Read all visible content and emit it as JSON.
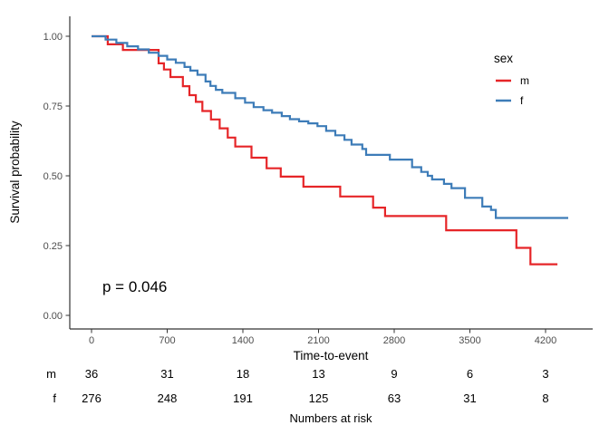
{
  "chart_data": {
    "type": "line",
    "subtype": "kaplan-meier-step-curves",
    "title": "",
    "xlabel": "Time-to-event",
    "ylabel": "Survival probability",
    "xlim": [
      0,
      4640
    ],
    "ylim": [
      0,
      1.0
    ],
    "grid": false,
    "xticks": [
      0,
      700,
      1400,
      2100,
      2800,
      3500,
      4200
    ],
    "yticks": [
      0.0,
      0.25,
      0.5,
      0.75,
      1.0
    ],
    "legend": {
      "title": "sex",
      "position": "top-right",
      "entries": [
        {
          "label": "m",
          "color": "#E62528"
        },
        {
          "label": "f",
          "color": "#3D7CB8"
        }
      ]
    },
    "annotation": {
      "text": "p = 0.046"
    },
    "series": [
      {
        "name": "m",
        "color": "#E62528",
        "points": [
          [
            0,
            1.0
          ],
          [
            150,
            0.971
          ],
          [
            290,
            0.951
          ],
          [
            620,
            0.903
          ],
          [
            670,
            0.881
          ],
          [
            730,
            0.854
          ],
          [
            845,
            0.821
          ],
          [
            905,
            0.789
          ],
          [
            965,
            0.765
          ],
          [
            1025,
            0.732
          ],
          [
            1105,
            0.702
          ],
          [
            1185,
            0.67
          ],
          [
            1260,
            0.637
          ],
          [
            1330,
            0.605
          ],
          [
            1480,
            0.565
          ],
          [
            1620,
            0.527
          ],
          [
            1750,
            0.497
          ],
          [
            1960,
            0.461
          ],
          [
            2300,
            0.426
          ],
          [
            2605,
            0.386
          ],
          [
            2715,
            0.356
          ],
          [
            3280,
            0.305
          ],
          [
            3930,
            0.242
          ],
          [
            4060,
            0.183
          ],
          [
            4310,
            0.183
          ]
        ]
      },
      {
        "name": "f",
        "color": "#3D7CB8",
        "points": [
          [
            0,
            1.0
          ],
          [
            130,
            0.988
          ],
          [
            230,
            0.976
          ],
          [
            330,
            0.964
          ],
          [
            430,
            0.953
          ],
          [
            530,
            0.941
          ],
          [
            620,
            0.93
          ],
          [
            700,
            0.917
          ],
          [
            780,
            0.905
          ],
          [
            860,
            0.89
          ],
          [
            915,
            0.877
          ],
          [
            980,
            0.862
          ],
          [
            1055,
            0.838
          ],
          [
            1100,
            0.822
          ],
          [
            1150,
            0.808
          ],
          [
            1210,
            0.797
          ],
          [
            1330,
            0.778
          ],
          [
            1420,
            0.762
          ],
          [
            1500,
            0.746
          ],
          [
            1590,
            0.735
          ],
          [
            1670,
            0.726
          ],
          [
            1760,
            0.714
          ],
          [
            1835,
            0.703
          ],
          [
            1920,
            0.695
          ],
          [
            2005,
            0.688
          ],
          [
            2090,
            0.678
          ],
          [
            2170,
            0.661
          ],
          [
            2255,
            0.645
          ],
          [
            2340,
            0.629
          ],
          [
            2405,
            0.612
          ],
          [
            2505,
            0.596
          ],
          [
            2540,
            0.575
          ],
          [
            2760,
            0.558
          ],
          [
            2965,
            0.531
          ],
          [
            3050,
            0.514
          ],
          [
            3110,
            0.5
          ],
          [
            3150,
            0.487
          ],
          [
            3260,
            0.471
          ],
          [
            3330,
            0.456
          ],
          [
            3455,
            0.421
          ],
          [
            3615,
            0.39
          ],
          [
            3695,
            0.378
          ],
          [
            3740,
            0.349
          ],
          [
            4410,
            0.349
          ]
        ]
      }
    ],
    "risk_table": {
      "caption": "Numbers at risk",
      "times": [
        0,
        700,
        1400,
        2100,
        2800,
        3500,
        4200
      ],
      "rows": [
        {
          "label": "m",
          "counts": [
            36,
            31,
            18,
            13,
            9,
            6,
            3
          ]
        },
        {
          "label": "f",
          "counts": [
            276,
            248,
            191,
            125,
            63,
            31,
            8
          ]
        }
      ]
    }
  }
}
